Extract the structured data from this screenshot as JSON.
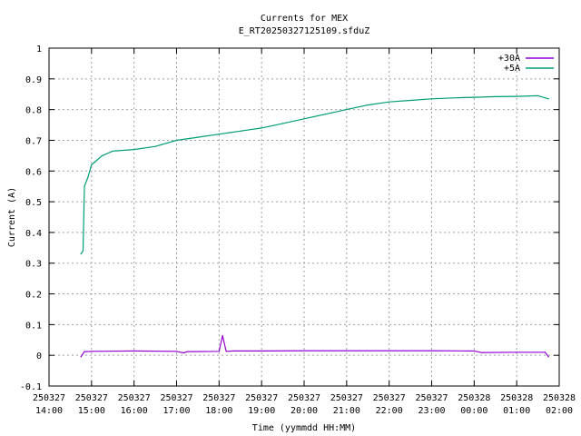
{
  "chart_data": {
    "type": "line",
    "title": "Currents for MEX",
    "subtitle": "E_RT20250327125109.sfduZ",
    "xlabel": "Time (yymmdd HH:MM)",
    "ylabel": "Current (A)",
    "ylim": [
      -0.1,
      1.0
    ],
    "yticks": [
      "-0.1",
      "0",
      "0.1",
      "0.2",
      "0.3",
      "0.4",
      "0.5",
      "0.6",
      "0.7",
      "0.8",
      "0.9",
      "1"
    ],
    "xlim_hours": [
      14,
      26
    ],
    "xticks": [
      {
        "date": "250327",
        "time": "14:00"
      },
      {
        "date": "250327",
        "time": "15:00"
      },
      {
        "date": "250327",
        "time": "16:00"
      },
      {
        "date": "250327",
        "time": "17:00"
      },
      {
        "date": "250327",
        "time": "18:00"
      },
      {
        "date": "250327",
        "time": "19:00"
      },
      {
        "date": "250327",
        "time": "20:00"
      },
      {
        "date": "250327",
        "time": "21:00"
      },
      {
        "date": "250327",
        "time": "22:00"
      },
      {
        "date": "250327",
        "time": "23:00"
      },
      {
        "date": "250328",
        "time": "00:00"
      },
      {
        "date": "250328",
        "time": "01:00"
      },
      {
        "date": "250328",
        "time": "02:00"
      }
    ],
    "grid": true,
    "legend_position": "top-right",
    "series": [
      {
        "name": "+30A",
        "color": "#9400d3",
        "x": [
          "14:45",
          "14:50",
          "15:00",
          "16:00",
          "17:00",
          "17:10",
          "17:15",
          "18:00",
          "18:05",
          "18:10",
          "18:20",
          "19:00",
          "20:00",
          "21:00",
          "22:00",
          "23:00",
          "00:00",
          "00:10",
          "01:00",
          "01:40",
          "01:45"
        ],
        "y": [
          -0.005,
          0.012,
          0.013,
          0.014,
          0.013,
          0.008,
          0.012,
          0.013,
          0.064,
          0.013,
          0.014,
          0.014,
          0.015,
          0.015,
          0.015,
          0.015,
          0.014,
          0.009,
          0.01,
          0.01,
          -0.005
        ]
      },
      {
        "name": "+5A",
        "color": "#009e73",
        "x": [
          "14:45",
          "14:48",
          "14:50",
          "14:55",
          "15:00",
          "15:15",
          "15:30",
          "16:00",
          "16:30",
          "17:00",
          "17:30",
          "18:00",
          "18:30",
          "19:00",
          "19:30",
          "20:00",
          "20:30",
          "21:00",
          "21:30",
          "22:00",
          "22:30",
          "23:00",
          "23:30",
          "00:00",
          "00:30",
          "01:00",
          "01:30",
          "01:45"
        ],
        "y": [
          0.33,
          0.34,
          0.55,
          0.58,
          0.62,
          0.65,
          0.665,
          0.67,
          0.68,
          0.7,
          0.71,
          0.72,
          0.73,
          0.74,
          0.755,
          0.77,
          0.785,
          0.8,
          0.815,
          0.825,
          0.83,
          0.835,
          0.838,
          0.84,
          0.842,
          0.843,
          0.845,
          0.835
        ]
      }
    ]
  }
}
